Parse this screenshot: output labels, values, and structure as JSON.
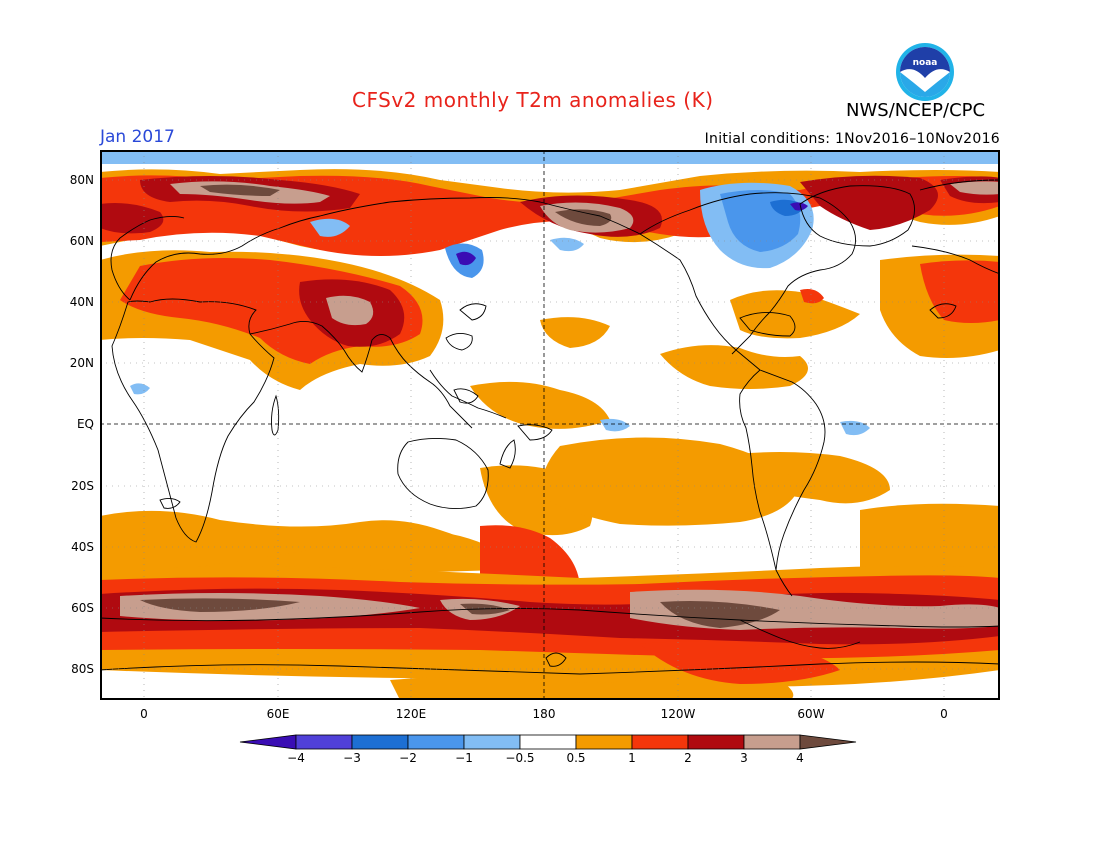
{
  "header": {
    "title": "CFSv2 monthly T2m anomalies (K)",
    "agency": "NWS/NCEP/CPC",
    "logo_text": "noaa",
    "period": "Jan 2017",
    "initial_conditions": "Initial conditions: 1Nov2016–10Nov2016"
  },
  "axes": {
    "y_labels": [
      "80N",
      "60N",
      "40N",
      "20N",
      "EQ",
      "20S",
      "40S",
      "60S",
      "80S"
    ],
    "x_labels": [
      "0",
      "60E",
      "120E",
      "180",
      "120W",
      "60W",
      "0"
    ]
  },
  "colorbar": {
    "labels": [
      "−4",
      "−3",
      "−2",
      "−1",
      "−0.5",
      "0.5",
      "1",
      "2",
      "3",
      "4"
    ],
    "colors": [
      "#3a0db4",
      "#5040d8",
      "#1d6fd3",
      "#4a96ec",
      "#82bdf4",
      "#ffffff",
      "#f49b00",
      "#f4360b",
      "#b00a10",
      "#c79e8e",
      "#6e4a3d"
    ]
  },
  "colors": {
    "title": "#e8231b",
    "period": "#2a49d8",
    "land_outline": "#000000"
  }
}
